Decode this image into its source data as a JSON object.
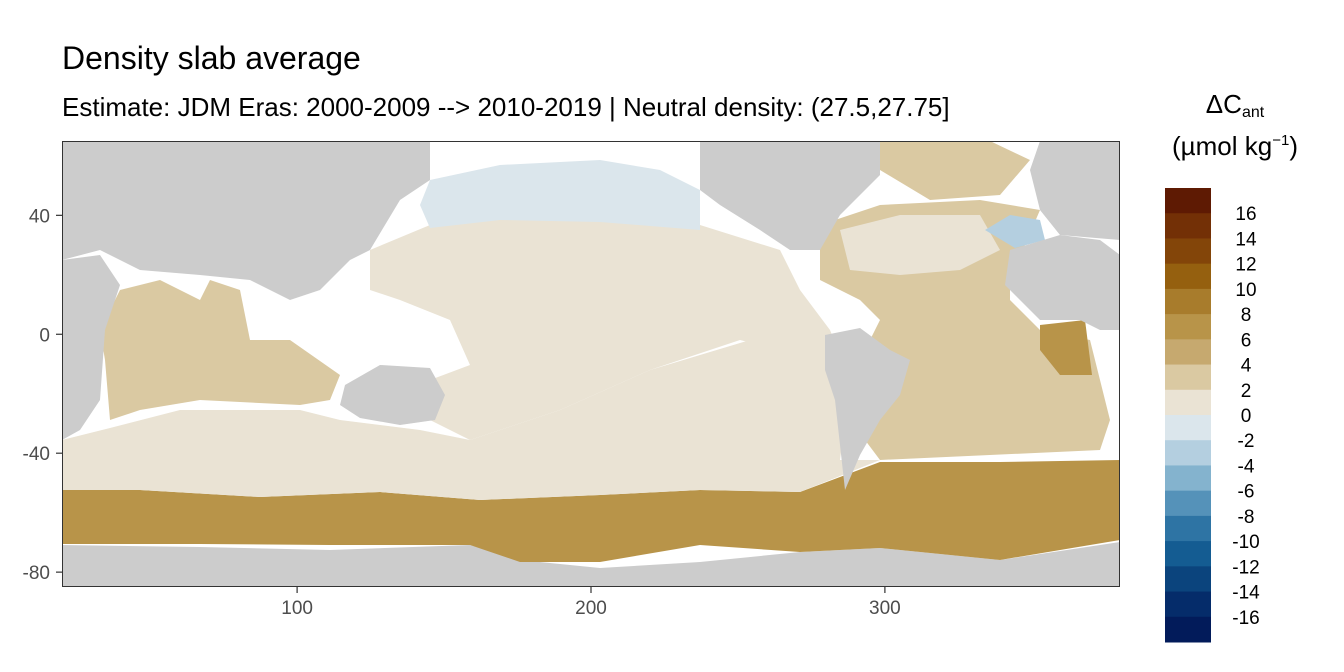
{
  "title": "Density slab average",
  "subtitle": "Estimate: JDM Eras: 2000-2009 --> 2010-2019 | Neutral density: (27.5,27.75]",
  "legend": {
    "symbol": "ΔC",
    "subscript": "ant",
    "unit_open": "(µmol kg",
    "unit_sup": "−1",
    "unit_close": ")",
    "breaks": [
      "16",
      "14",
      "12",
      "10",
      "8",
      "6",
      "4",
      "2",
      "0",
      "-2",
      "-4",
      "-6",
      "-8",
      "-10",
      "-12",
      "-14",
      "-16"
    ],
    "colors": [
      "#5e1a03",
      "#733006",
      "#834509",
      "#95600f",
      "#a87c2c",
      "#b89449",
      "#c6a96f",
      "#dac9a2",
      "#eae3d4",
      "#dbe6ec",
      "#b4cfe0",
      "#84b3ce",
      "#5592b9",
      "#2e74a4",
      "#145c92",
      "#0b447d",
      "#052c6a",
      "#021b5a"
    ]
  },
  "colors": {
    "land": "#cccccc",
    "nodata": "#ffffff",
    "panel_border": "#333333",
    "tick_label": "#4d4d4d"
  },
  "chart_data": {
    "type": "heatmap",
    "title": "Density slab average",
    "subtitle": "Estimate: JDM Eras: 2000-2009 --> 2010-2019 | Neutral density: (27.5,27.75]",
    "xlabel": "",
    "ylabel": "",
    "xlim": [
      20,
      380
    ],
    "ylim": [
      -85,
      65
    ],
    "x_ticks": [
      100,
      200,
      300
    ],
    "y_ticks": [
      40,
      0,
      -40,
      -80
    ],
    "grid": false,
    "legend_position": "right",
    "value_range": [
      -16,
      16
    ],
    "regions": [
      {
        "region": "North Pacific",
        "value": -1
      },
      {
        "region": "Equatorial and South Pacific",
        "value": 1
      },
      {
        "region": "Indian Ocean north of 30S",
        "value": 3
      },
      {
        "region": "Southern Indian and Pacific 30S-50S",
        "value": 1
      },
      {
        "region": "North Atlantic subtropics",
        "value": 2
      },
      {
        "region": "Eastern North Atlantic near Gibraltar",
        "value": -3
      },
      {
        "region": "Subpolar North Atlantic",
        "value": 3
      },
      {
        "region": "Tropical and South Atlantic",
        "value": 3
      },
      {
        "region": "Gulf of Guinea",
        "value": 5
      },
      {
        "region": "Southern Ocean 50S-65S",
        "value": 7
      },
      {
        "region": "Weddell Sea",
        "value": 7
      }
    ]
  }
}
